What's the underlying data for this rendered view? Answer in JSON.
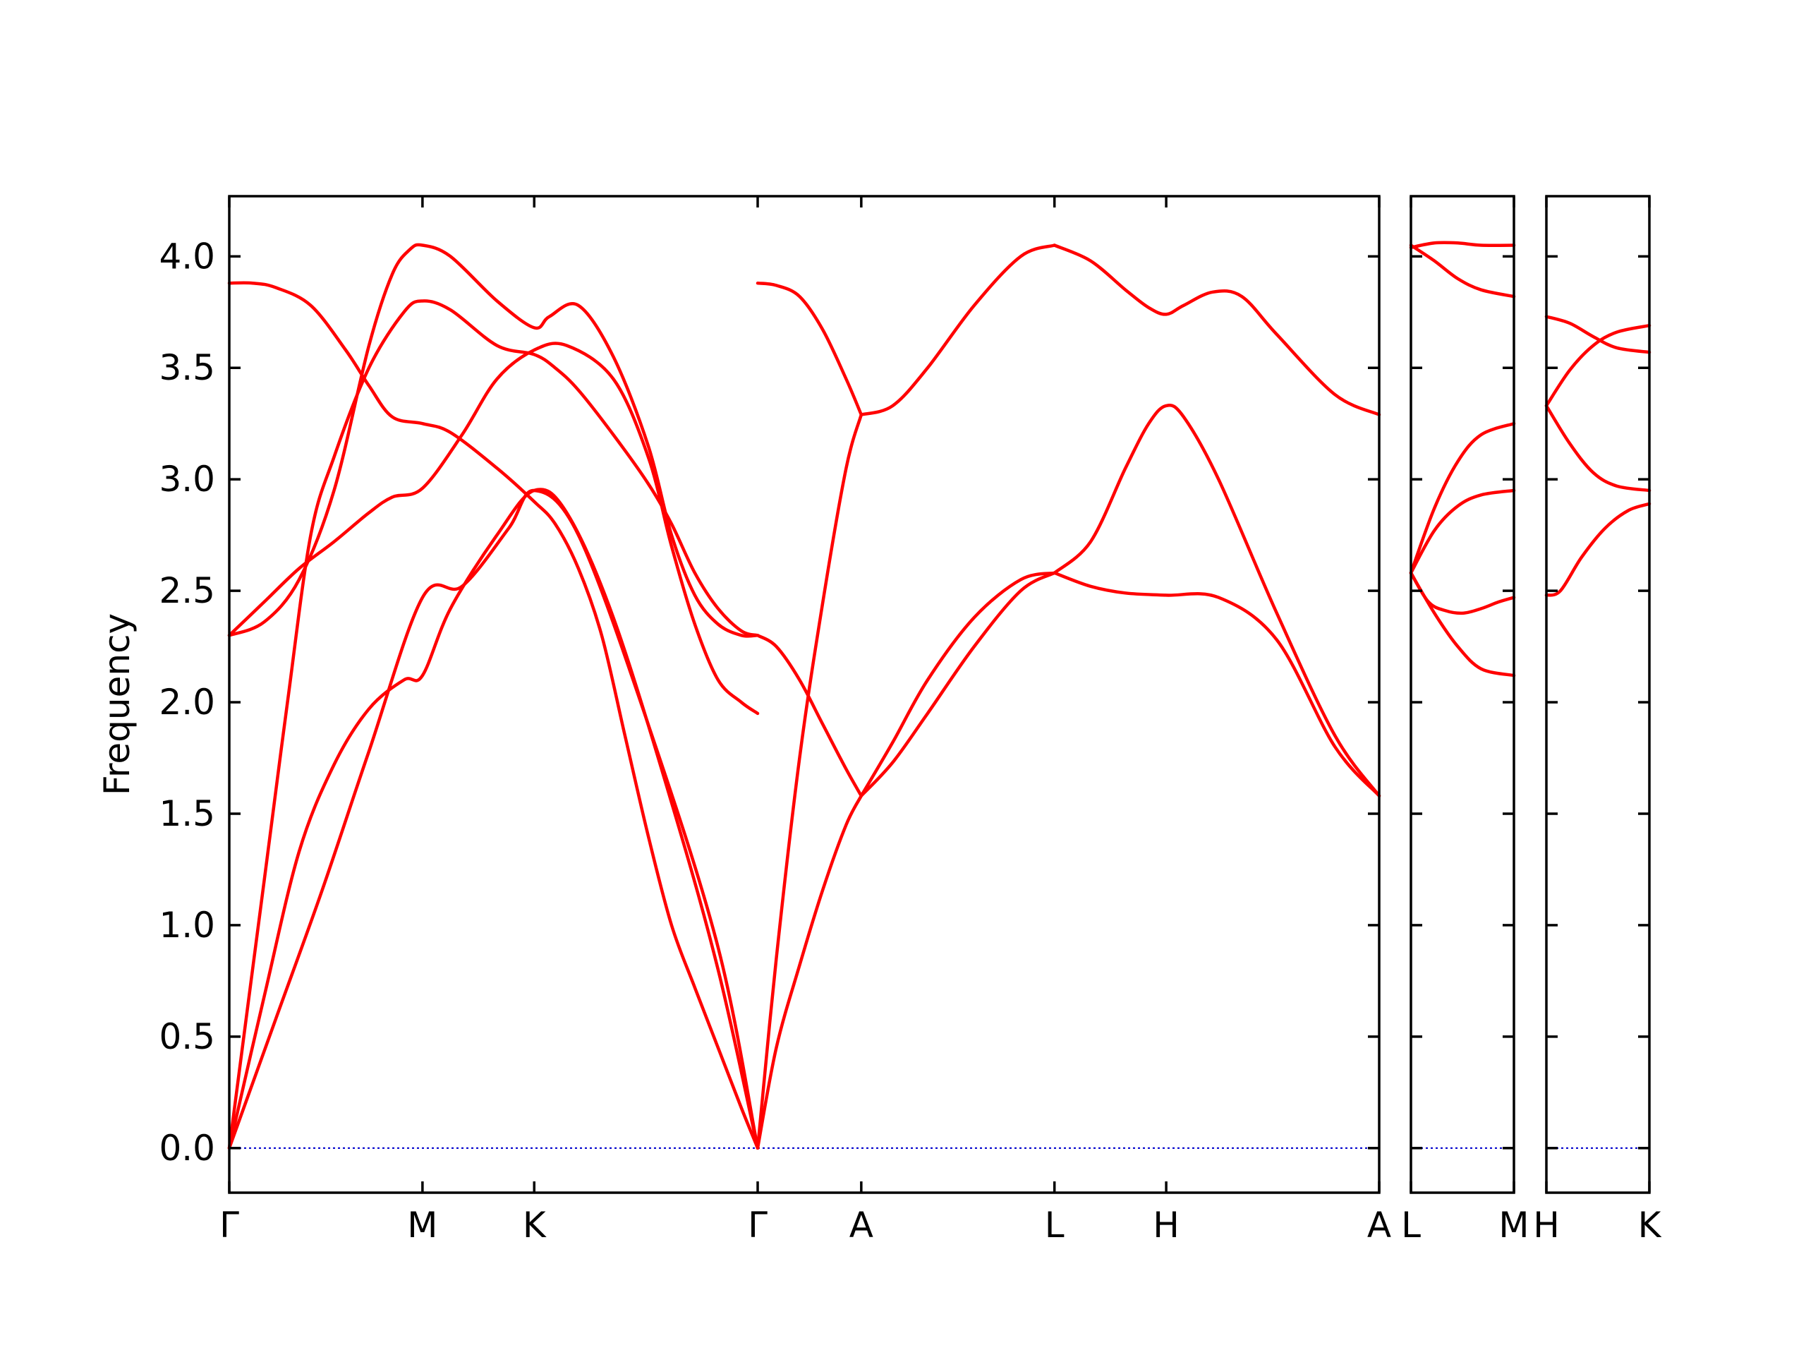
{
  "chart_data": {
    "type": "line",
    "title": "",
    "ylabel": "Frequency",
    "xlabel": "",
    "ylim": [
      -0.2,
      4.27
    ],
    "yticks": [
      0.0,
      0.5,
      1.0,
      1.5,
      2.0,
      2.5,
      3.0,
      3.5,
      4.0
    ],
    "ytick_labels": [
      "0.0",
      "0.5",
      "1.0",
      "1.5",
      "2.0",
      "2.5",
      "3.0",
      "3.5",
      "4.0"
    ],
    "grid": false,
    "legend": "none",
    "colors": {
      "bands": "#ff0000",
      "zero_line": "#0000cc",
      "axes": "#000000"
    },
    "panels": [
      {
        "name": "Γ-M-K-Γ-A-L-H-A",
        "x_range": [
          0,
          988
        ],
        "ticks": [
          {
            "x": 0,
            "label": "Γ"
          },
          {
            "x": 166,
            "label": "M"
          },
          {
            "x": 262,
            "label": "K"
          },
          {
            "x": 454,
            "label": "Γ"
          },
          {
            "x": 543,
            "label": "A"
          },
          {
            "x": 709,
            "label": "L"
          },
          {
            "x": 805,
            "label": "H"
          },
          {
            "x": 988,
            "label": "A"
          }
        ],
        "series": [
          {
            "x": [
              0,
              40,
              80,
              120,
              166,
              200,
              240,
              262,
              300,
              360,
              420,
              454
            ],
            "y": [
              0.0,
              0.58,
              1.16,
              1.78,
              2.47,
              2.52,
              2.78,
              2.95,
              2.75,
              1.9,
              0.9,
              0.0
            ]
          },
          {
            "x": [
              0,
              30,
              60,
              90,
              120,
              150,
              166,
              190,
              230,
              262,
              290,
              330,
              380,
              420,
              454
            ],
            "y": [
              0.0,
              0.68,
              1.33,
              1.72,
              1.97,
              2.1,
              2.12,
              2.42,
              2.75,
              2.95,
              2.85,
              2.38,
              1.55,
              0.8,
              0.0
            ]
          },
          {
            "x": [
              0,
              30,
              50,
              70,
              90,
              120,
              150,
              166,
              190,
              230,
              262,
              280,
              300,
              330,
              360,
              380,
              400,
              420,
              440,
              454
            ],
            "y": [
              0.0,
              1.2,
              2.0,
              2.75,
              3.1,
              3.5,
              3.75,
              3.8,
              3.76,
              3.6,
              3.56,
              3.5,
              3.4,
              3.2,
              2.98,
              2.8,
              2.58,
              2.42,
              2.32,
              2.3
            ]
          },
          {
            "x": [
              0,
              30,
              60,
              90,
              120,
              140,
              155,
              166,
              190,
              230,
              262,
              275,
              300,
              330,
              360,
              380,
              400,
              420,
              440,
              454
            ],
            "y": [
              2.3,
              2.36,
              2.55,
              2.95,
              3.6,
              3.92,
              4.03,
              4.05,
              4.0,
              3.8,
              3.68,
              3.73,
              3.78,
              3.55,
              3.15,
              2.75,
              2.48,
              2.35,
              2.3,
              2.3
            ]
          },
          {
            "x": [
              0,
              20,
              40,
              70,
              100,
              120,
              140,
              166,
              190,
              230,
              262,
              280,
              300,
              320,
              340,
              360,
              380,
              400,
              420,
              440,
              454
            ],
            "y": [
              3.88,
              3.88,
              3.86,
              3.78,
              3.58,
              3.42,
              3.28,
              3.25,
              3.21,
              3.05,
              2.9,
              2.8,
              2.6,
              2.3,
              1.85,
              1.4,
              1.0,
              0.72,
              0.45,
              0.18,
              0.0
            ]
          },
          {
            "x": [
              0,
              30,
              60,
              90,
              120,
              140,
              166,
              200,
              230,
              262,
              290,
              330,
              360,
              380,
              400,
              420,
              440,
              454
            ],
            "y": [
              2.3,
              2.45,
              2.6,
              2.72,
              2.85,
              2.92,
              2.96,
              3.2,
              3.45,
              3.58,
              3.6,
              3.45,
              3.1,
              2.7,
              2.35,
              2.1,
              2.0,
              1.95
            ]
          },
          {
            "x": [
              454,
              470,
              490,
              510,
              530,
              543
            ],
            "y": [
              0.0,
              0.45,
              0.82,
              1.16,
              1.45,
              1.58
            ]
          },
          {
            "x": [
              454,
              470,
              490,
              510,
              530,
              543
            ],
            "y": [
              2.3,
              2.25,
              2.1,
              1.9,
              1.7,
              1.58
            ]
          },
          {
            "x": [
              454,
              470,
              490,
              510,
              530,
              543
            ],
            "y": [
              0.0,
              0.85,
              1.75,
              2.45,
              3.05,
              3.29
            ]
          },
          {
            "x": [
              454,
              470,
              490,
              510,
              530,
              543
            ],
            "y": [
              3.88,
              3.87,
              3.82,
              3.67,
              3.45,
              3.29
            ]
          },
          {
            "x": [
              543,
              570,
              600,
              640,
              680,
              709
            ],
            "y": [
              1.58,
              1.73,
              1.95,
              2.25,
              2.5,
              2.58
            ]
          },
          {
            "x": [
              543,
              570,
              600,
              640,
              680,
              709
            ],
            "y": [
              1.58,
              1.82,
              2.1,
              2.38,
              2.55,
              2.58
            ]
          },
          {
            "x": [
              543,
              570,
              600,
              640,
              680,
              709
            ],
            "y": [
              3.29,
              3.33,
              3.5,
              3.78,
              4.0,
              4.05
            ]
          },
          {
            "x": [
              709,
              740,
              770,
              805,
              850,
              900,
              950,
              988
            ],
            "y": [
              2.58,
              2.52,
              2.49,
              2.48,
              2.47,
              2.28,
              1.8,
              1.58
            ]
          },
          {
            "x": [
              709,
              740,
              770,
              790,
              805,
              820,
              850,
              900,
              950,
              988
            ],
            "y": [
              2.58,
              2.72,
              3.05,
              3.25,
              3.33,
              3.28,
              3.0,
              2.4,
              1.85,
              1.58
            ]
          },
          {
            "x": [
              709,
              740,
              770,
              790,
              805,
              820,
              845,
              870,
              900,
              950,
              988
            ],
            "y": [
              4.05,
              3.98,
              3.85,
              3.77,
              3.74,
              3.78,
              3.84,
              3.82,
              3.65,
              3.38,
              3.29
            ]
          }
        ]
      },
      {
        "name": "L-M",
        "x_range": [
          0,
          88
        ],
        "ticks": [
          {
            "x": 0,
            "label": "L"
          },
          {
            "x": 88,
            "label": "M"
          }
        ],
        "series": [
          {
            "x": [
              0,
              20,
              40,
              60,
              88
            ],
            "y": [
              2.58,
              2.4,
              2.25,
              2.15,
              2.12
            ]
          },
          {
            "x": [
              0,
              15,
              30,
              45,
              60,
              75,
              88
            ],
            "y": [
              2.58,
              2.45,
              2.41,
              2.4,
              2.42,
              2.45,
              2.47
            ]
          },
          {
            "x": [
              0,
              20,
              40,
              60,
              88
            ],
            "y": [
              2.58,
              2.77,
              2.88,
              2.93,
              2.95
            ]
          },
          {
            "x": [
              0,
              20,
              40,
              60,
              88
            ],
            "y": [
              2.58,
              2.87,
              3.08,
              3.2,
              3.25
            ]
          },
          {
            "x": [
              0,
              20,
              40,
              60,
              88
            ],
            "y": [
              4.05,
              3.98,
              3.9,
              3.85,
              3.82
            ]
          },
          {
            "x": [
              0,
              20,
              40,
              60,
              88
            ],
            "y": [
              4.04,
              4.06,
              4.06,
              4.05,
              4.05
            ]
          }
        ]
      },
      {
        "name": "H-K",
        "x_range": [
          0,
          88
        ],
        "ticks": [
          {
            "x": 0,
            "label": "H"
          },
          {
            "x": 88,
            "label": "K"
          }
        ],
        "series": [
          {
            "x": [
              0,
              12,
              30,
              50,
              70,
              88
            ],
            "y": [
              2.48,
              2.5,
              2.65,
              2.78,
              2.86,
              2.89
            ]
          },
          {
            "x": [
              0,
              20,
              40,
              60,
              88
            ],
            "y": [
              3.33,
              3.16,
              3.03,
              2.97,
              2.95
            ]
          },
          {
            "x": [
              0,
              20,
              40,
              60,
              88
            ],
            "y": [
              3.33,
              3.49,
              3.6,
              3.66,
              3.69
            ]
          },
          {
            "x": [
              0,
              20,
              40,
              60,
              88
            ],
            "y": [
              3.73,
              3.7,
              3.64,
              3.59,
              3.57
            ]
          }
        ]
      }
    ]
  }
}
